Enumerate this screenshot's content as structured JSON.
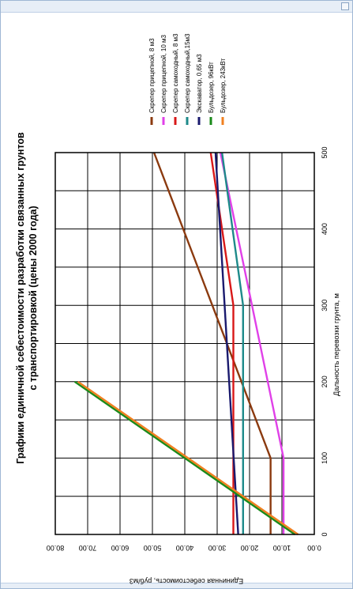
{
  "chart_data": {
    "type": "line",
    "orientation": "rotated-90-ccw",
    "title_lines": [
      "Графики единичной себестоимости разработки связанных грунтов",
      "с транспортировкой (цены 2000 года)"
    ],
    "xlabel": "Дальность перевозки грунта, м",
    "ylabel": "Единичная себестоимость, руб/м3",
    "xlim": [
      0,
      500
    ],
    "ylim": [
      0,
      80
    ],
    "x_ticks": [
      "0",
      "100",
      "200",
      "300",
      "400",
      "500"
    ],
    "y_ticks": [
      "0.00",
      "10.00",
      "20.00",
      "30.00",
      "40.00",
      "50.00",
      "60.00",
      "70.00",
      "80.00"
    ],
    "grid": true,
    "legend_position": "top",
    "series": [
      {
        "name": "Скрепер прицепной, 8 м3",
        "color": "#8b3a0f",
        "x": [
          0,
          100,
          500
        ],
        "y": [
          13.5,
          13.5,
          49.5
        ]
      },
      {
        "name": "Скрепер прицепной, 10 м3",
        "color": "#e040e8",
        "x": [
          0,
          100,
          500
        ],
        "y": [
          9.5,
          9.5,
          29.0
        ]
      },
      {
        "name": "Скрепер самоходный, 8 м3",
        "color": "#d81818",
        "x": [
          0,
          300,
          500
        ],
        "y": [
          25.0,
          25.0,
          32.0
        ]
      },
      {
        "name": "Скрепер самоходный,15м3",
        "color": "#1e8a8a",
        "x": [
          0,
          300,
          500
        ],
        "y": [
          22.0,
          22.0,
          28.5
        ]
      },
      {
        "name": "Экскаватор, 0,65 м3",
        "color": "#1a1a6e",
        "x": [
          0,
          500
        ],
        "y": [
          23.5,
          30.5
        ]
      },
      {
        "name": "Бульдозер, 96кВт",
        "color": "#1a8a1a",
        "x": [
          0,
          200
        ],
        "y": [
          6.0,
          74.0
        ]
      },
      {
        "name": "Бульдозер, 243кВт",
        "color": "#f08020",
        "x": [
          0,
          200
        ],
        "y": [
          5.0,
          73.0
        ]
      }
    ]
  }
}
